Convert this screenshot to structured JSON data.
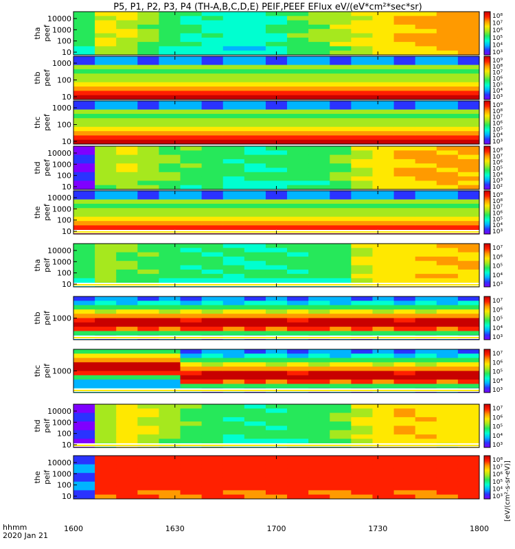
{
  "title": "P5, P1, P2, P3, P4 (TH-A,B,C,D,E) PEIF,PEEF EFlux eV/(eV*cm²*sec*sr)",
  "colors": {
    "ramp": [
      "#7f00ff",
      "#2a33ff",
      "#00b4ff",
      "#00ffd0",
      "#26e85a",
      "#a6e81e",
      "#ffe800",
      "#ff9a00",
      "#ff2000",
      "#c80000"
    ],
    "frame": "#000000",
    "background": "#ffffff"
  },
  "chart_data": {
    "type": "heatmap",
    "x_axis": {
      "label_line1": "hhmm",
      "label_line2": "2020 Jan 21",
      "ticks": [
        "1600",
        "1630",
        "1700",
        "1730",
        "1800"
      ],
      "range_minutes_after_1600": [
        0,
        120
      ]
    },
    "cbar_label": "[eV/(cm²-s-sr-eV)]",
    "panels": [
      {
        "probe": "tha",
        "species": "peef",
        "yticks": [
          "10000",
          "1000",
          "100",
          "10"
        ],
        "cbar_ticks": [
          "10⁸",
          "10⁷",
          "10⁶",
          "10⁵",
          "10⁴",
          "10³"
        ],
        "stripe": false,
        "start_value": 0.45,
        "columns": [
          0.5,
          0.62,
          0.6,
          0.52,
          0.45,
          0.4,
          0.38,
          0.35,
          0.36,
          0.4,
          0.48,
          0.52,
          0.58,
          0.62,
          0.66,
          0.7,
          0.72,
          0.74,
          0.75
        ]
      },
      {
        "probe": "thb",
        "species": "peef",
        "yticks": [
          "1000",
          "100",
          "10"
        ],
        "cbar_ticks": [
          "10⁹",
          "10⁸",
          "10⁷",
          "10⁶",
          "10⁵",
          "10⁴",
          "10³"
        ],
        "stripe": false,
        "start_value": 0.15,
        "columns": [
          0.15,
          0.15,
          0.15,
          0.14,
          0.15,
          0.15,
          0.15,
          0.15,
          0.14,
          0.15,
          0.15,
          0.15,
          0.15,
          0.14,
          0.15,
          0.15,
          0.15,
          0.15,
          0.15
        ]
      },
      {
        "probe": "thc",
        "species": "peef",
        "yticks": [
          "1000",
          "100",
          "10"
        ],
        "cbar_ticks": [
          "10⁹",
          "10⁸",
          "10⁷",
          "10⁶",
          "10⁵",
          "10⁴",
          "10³"
        ],
        "stripe": false,
        "start_value": 0.2,
        "columns": [
          0.2,
          0.2,
          0.2,
          0.2,
          0.2,
          0.2,
          0.2,
          0.2,
          0.2,
          0.2,
          0.2,
          0.2,
          0.2,
          0.2,
          0.2,
          0.2,
          0.2,
          0.2,
          0.2
        ]
      },
      {
        "probe": "thd",
        "species": "peef",
        "yticks": [
          "10000",
          "1000",
          "100",
          "10"
        ],
        "cbar_ticks": [
          "10⁸",
          "10⁷",
          "10⁶",
          "10⁵",
          "10⁴",
          "10³",
          "10²"
        ],
        "stripe": false,
        "start_value": 0.1,
        "columns": [
          0.1,
          0.55,
          0.6,
          0.55,
          0.5,
          0.48,
          0.45,
          0.42,
          0.4,
          0.42,
          0.44,
          0.45,
          0.5,
          0.6,
          0.66,
          0.7,
          0.72,
          0.72,
          0.72
        ]
      },
      {
        "probe": "the",
        "species": "peef",
        "yticks": [
          "10000",
          "1000",
          "100",
          "10"
        ],
        "cbar_ticks": [
          "10⁹",
          "10⁸",
          "10⁷",
          "10⁶",
          "10⁵",
          "10⁴",
          "10³"
        ],
        "stripe": true,
        "start_value": 0.2,
        "columns": [
          0.2,
          0.2,
          0.2,
          0.2,
          0.2,
          0.2,
          0.2,
          0.2,
          0.2,
          0.2,
          0.2,
          0.2,
          0.2,
          0.2,
          0.2,
          0.2,
          0.2,
          0.2,
          0.2
        ]
      },
      {
        "probe": "tha",
        "species": "peif",
        "yticks": [
          "10000",
          "1000",
          "100",
          "10"
        ],
        "cbar_ticks": [
          "10⁷",
          "10⁶",
          "10⁵",
          "10⁴",
          "10³"
        ],
        "stripe": true,
        "start_value": 0.45,
        "columns": [
          0.45,
          0.55,
          0.5,
          0.48,
          0.45,
          0.42,
          0.42,
          0.4,
          0.4,
          0.42,
          0.42,
          0.44,
          0.45,
          0.6,
          0.65,
          0.66,
          0.68,
          0.7,
          0.7
        ]
      },
      {
        "probe": "thb",
        "species": "peif",
        "yticks": [
          "1000"
        ],
        "cbar_ticks": [
          "10⁷",
          "10⁶",
          "10⁵",
          "10⁴",
          "10³"
        ],
        "stripe": true,
        "start_value": 0.2,
        "columns": [
          0.2,
          0.2,
          0.2,
          0.2,
          0.2,
          0.2,
          0.2,
          0.2,
          0.2,
          0.2,
          0.2,
          0.2,
          0.2,
          0.2,
          0.2,
          0.2,
          0.2,
          0.2,
          0.2
        ]
      },
      {
        "probe": "thc",
        "species": "peif",
        "yticks": [
          "1000"
        ],
        "cbar_ticks": [
          "10⁷",
          "10⁶",
          "10⁵",
          "10⁴",
          "10³"
        ],
        "stripe": true,
        "start_value": 0.2,
        "columns": [
          0.2,
          0.2,
          0.2,
          0.2,
          0.2,
          0.2,
          0.2,
          0.2,
          0.2,
          0.2,
          0.2,
          0.2,
          0.2,
          0.2,
          0.2,
          0.2,
          0.2,
          0.2,
          0.2
        ]
      },
      {
        "probe": "thd",
        "species": "peif",
        "yticks": [
          "10000",
          "1000",
          "100",
          "10"
        ],
        "cbar_ticks": [
          "10⁷",
          "10⁶",
          "10⁵",
          "10⁴",
          "10³"
        ],
        "stripe": true,
        "start_value": 0.1,
        "columns": [
          0.1,
          0.55,
          0.65,
          0.6,
          0.55,
          0.48,
          0.45,
          0.42,
          0.42,
          0.42,
          0.44,
          0.46,
          0.5,
          0.6,
          0.66,
          0.7,
          0.68,
          0.66,
          0.66
        ]
      },
      {
        "probe": "the",
        "species": "peif",
        "yticks": [
          "10000",
          "1000",
          "100",
          "10"
        ],
        "cbar_ticks": [
          "10⁸",
          "10⁷",
          "10⁶",
          "10⁵",
          "10⁴",
          "10³"
        ],
        "stripe": false,
        "start_value": 0.2,
        "columns": [
          0.2,
          0.85,
          0.85,
          0.85,
          0.85,
          0.85,
          0.85,
          0.85,
          0.85,
          0.85,
          0.85,
          0.85,
          0.85,
          0.85,
          0.85,
          0.85,
          0.85,
          0.85,
          0.85
        ]
      }
    ]
  }
}
